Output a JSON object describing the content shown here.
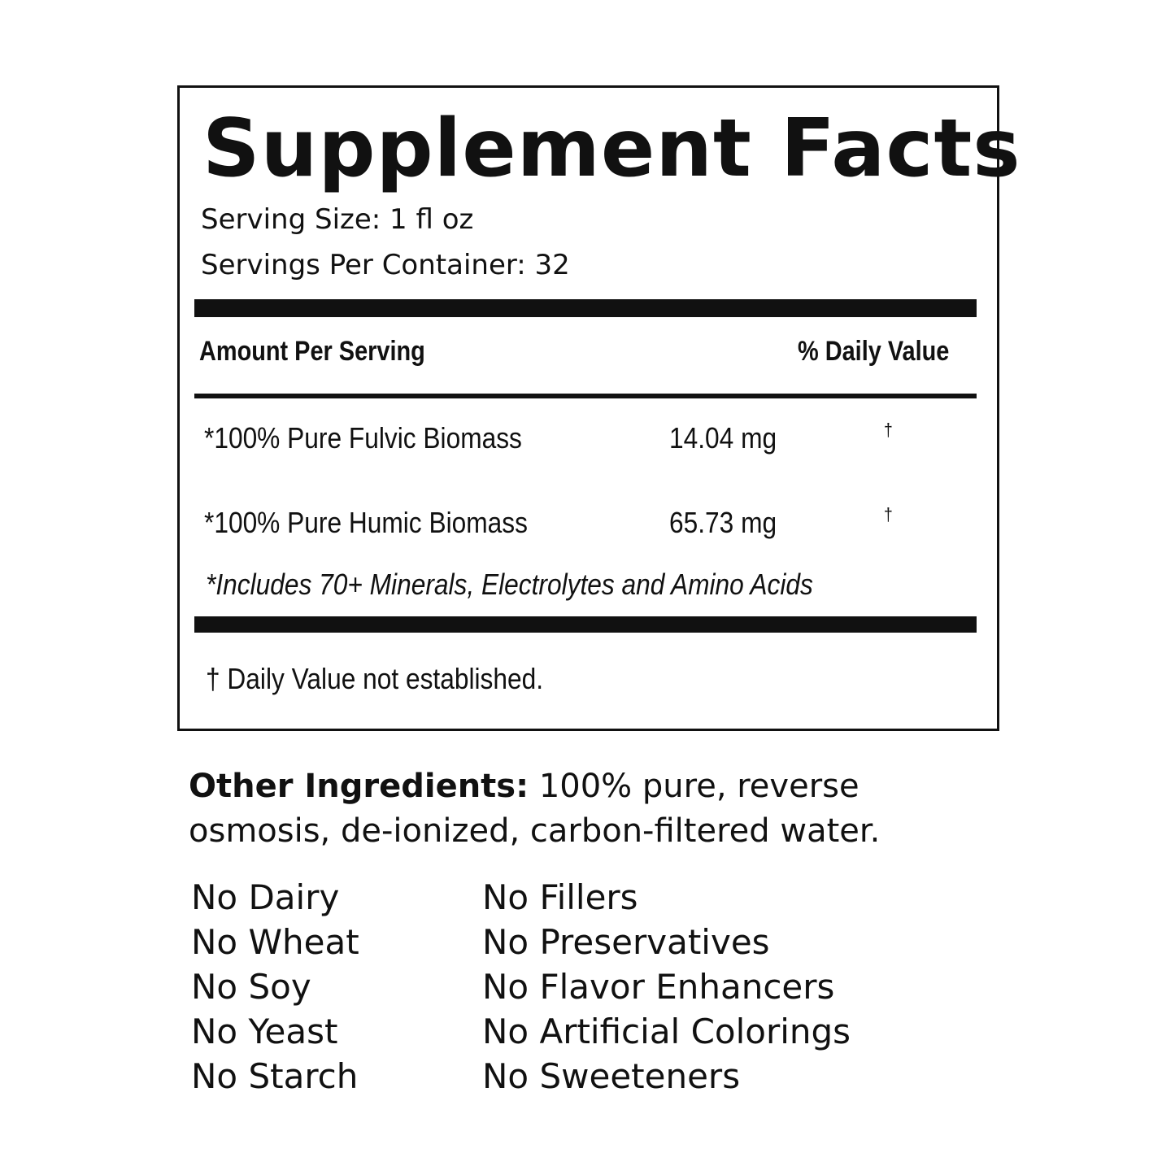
{
  "title": "Supplement Facts",
  "serving_size": "Serving Size: 1 fl oz",
  "servings_per_container": "Servings Per Container: 32",
  "header": {
    "amount": "Amount Per Serving",
    "dv": "% Daily Value"
  },
  "rows": [
    {
      "name": "*100% Pure Fulvic Biomass",
      "amount": "14.04 mg",
      "dv": "†"
    },
    {
      "name": "*100% Pure Humic Biomass",
      "amount": "65.73 mg",
      "dv": "†"
    }
  ],
  "includes": "*Includes 70+ Minerals, Electrolytes and Amino Acids",
  "footnote": "† Daily Value not established.",
  "other": {
    "label": "Other Ingredients:",
    "line1": " 100% pure, reverse",
    "line2": "osmosis, de-ionized, carbon-filtered water."
  },
  "free_left": [
    "No Dairy",
    "No Wheat",
    "No Soy",
    "No Yeast",
    "No Starch"
  ],
  "free_right": [
    "No Fillers",
    "No Preservatives",
    "No Flavor Enhancers",
    "No Artificial Colorings",
    "No Sweeteners"
  ]
}
